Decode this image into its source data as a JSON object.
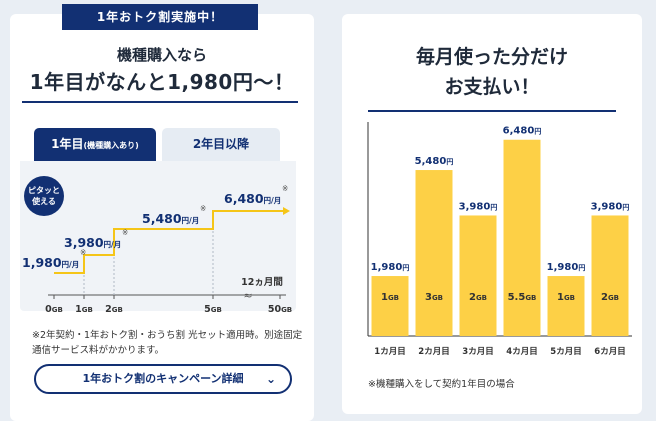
{
  "left": {
    "ribbon": "1年おトク割実施中！",
    "headline_line1": "機種購入なら",
    "headline_line2": "1年目がなんと1,980円～！",
    "tabs": [
      {
        "label": "1年目",
        "sub": "(機種購入あり)",
        "active": true
      },
      {
        "label": "2年目以降",
        "active": false
      }
    ],
    "badge_line1": "ピタッと",
    "badge_line2": "使える",
    "steps": [
      {
        "price": "1,980",
        "unit": "円/月",
        "mark": "※"
      },
      {
        "price": "3,980",
        "unit": "円/月",
        "mark": "※"
      },
      {
        "price": "5,480",
        "unit": "円/月",
        "mark": "※"
      },
      {
        "price": "6,480",
        "unit": "円/月",
        "mark": "※"
      }
    ],
    "period_label": "12ヵ月間",
    "axis_ticks": [
      {
        "num": "0",
        "unit": "GB"
      },
      {
        "num": "1",
        "unit": "GB"
      },
      {
        "num": "2",
        "unit": "GB"
      },
      {
        "num": "5",
        "unit": "GB"
      },
      {
        "num": "50",
        "unit": "GB"
      }
    ],
    "break_mark": "≈",
    "note": "※2年契約・1年おトク割・おうち割 光セット適用時。別途固定通信サービス料がかかります。",
    "campaign_button": "1年おトク割のキャンペーン詳細"
  },
  "right": {
    "headline_line1": "毎月使った分だけ",
    "headline_line2": "お支払い！",
    "note": "※機種購入をして契約1年目の場合",
    "price_unit": "円"
  },
  "chart_data": {
    "type": "bar",
    "categories": [
      "1カ月目",
      "2カ月目",
      "3カ月目",
      "4カ月目",
      "5カ月目",
      "6カ月目"
    ],
    "values": [
      1980,
      5480,
      3980,
      6480,
      1980,
      3980
    ],
    "value_labels": [
      "1,980",
      "5,480",
      "3,980",
      "6,480",
      "1,980",
      "3,980"
    ],
    "data_usage": [
      "1GB",
      "3GB",
      "2GB",
      "5.5GB",
      "1GB",
      "2GB"
    ],
    "ylim": [
      0,
      7000
    ],
    "bar_color": "#fdd046",
    "label_color": "#123073"
  },
  "colors": {
    "navy": "#123073",
    "yellow": "#fdd046",
    "line_yellow": "#f5c518"
  }
}
